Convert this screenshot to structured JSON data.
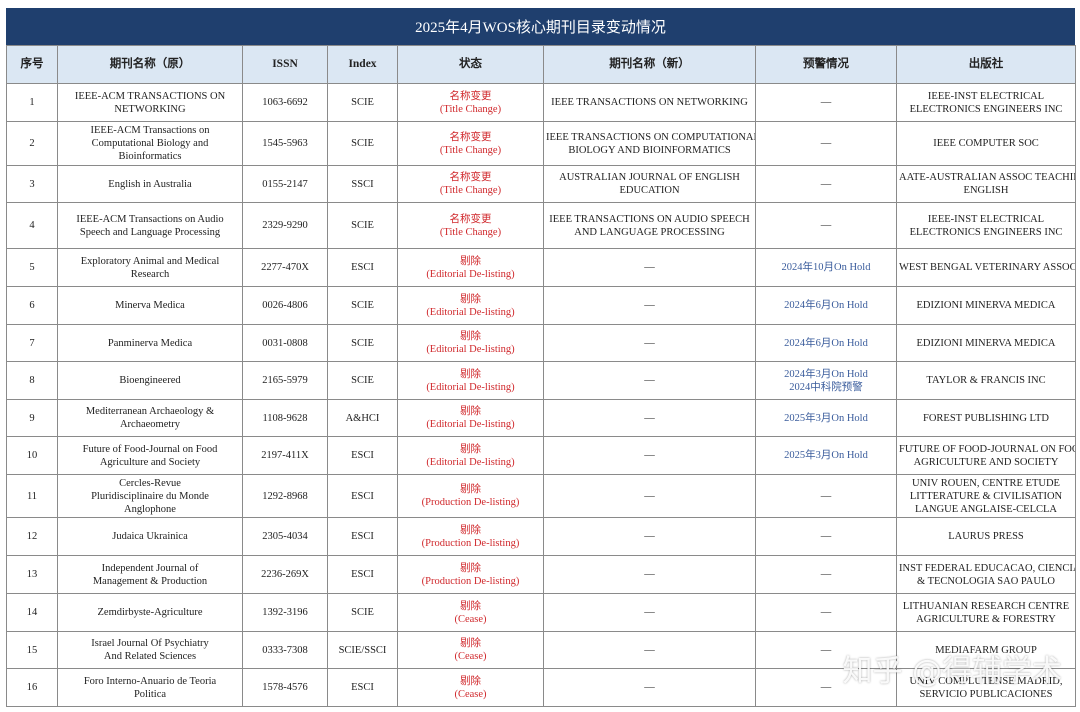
{
  "title": "2025年4月WOS核心期刊目录变动情况",
  "watermark": "知乎 @得辅学术",
  "table": {
    "header": [
      "序号",
      "期刊名称（原）",
      "ISSN",
      "Index",
      "状态",
      "期刊名称（新）",
      "预警情况",
      "出版社"
    ],
    "rows": [
      [
        "1",
        [
          "IEEE-ACM TRANSACTIONS ON",
          "NETWORKING"
        ],
        "1063-6692",
        "SCIE",
        [
          "名称变更",
          "(Title Change)"
        ],
        "IEEE TRANSACTIONS ON NETWORKING",
        "—",
        [
          "IEEE-INST ELECTRICAL",
          "ELECTRONICS ENGINEERS INC"
        ]
      ],
      [
        "2",
        [
          "IEEE-ACM Transactions on",
          "Computational Biology and",
          "Bioinformatics"
        ],
        "1545-5963",
        "SCIE",
        [
          "名称变更",
          "(Title Change)"
        ],
        [
          "IEEE TRANSACTIONS ON COMPUTATIONAL",
          "BIOLOGY AND BIOINFORMATICS"
        ],
        "—",
        "IEEE COMPUTER SOC"
      ],
      [
        "3",
        "English in Australia",
        "0155-2147",
        "SSCI",
        [
          "名称变更",
          "(Title Change)"
        ],
        [
          "AUSTRALIAN JOURNAL OF ENGLISH",
          "EDUCATION"
        ],
        "—",
        [
          "AATE-AUSTRALIAN ASSOC TEACHING",
          "ENGLISH"
        ]
      ],
      [
        "4",
        [
          "IEEE-ACM Transactions on Audio",
          "Speech and Language Processing"
        ],
        "2329-9290",
        "SCIE",
        [
          "名称变更",
          "(Title Change)"
        ],
        [
          "IEEE TRANSACTIONS ON AUDIO SPEECH",
          "AND LANGUAGE PROCESSING"
        ],
        "—",
        [
          "IEEE-INST ELECTRICAL",
          "ELECTRONICS ENGINEERS INC"
        ]
      ],
      [
        "5",
        [
          "Exploratory Animal and Medical",
          "Research"
        ],
        "2277-470X",
        "ESCI",
        [
          "剔除",
          "(Editorial De-listing)"
        ],
        "—",
        "2024年10月On Hold",
        "WEST BENGAL VETERINARY ASSOC"
      ],
      [
        "6",
        "Minerva Medica",
        "0026-4806",
        "SCIE",
        [
          "剔除",
          "(Editorial De-listing)"
        ],
        "—",
        "2024年6月On Hold",
        "EDIZIONI MINERVA MEDICA"
      ],
      [
        "7",
        "Panminerva Medica",
        "0031-0808",
        "SCIE",
        [
          "剔除",
          "(Editorial De-listing)"
        ],
        "—",
        "2024年6月On Hold",
        "EDIZIONI MINERVA MEDICA"
      ],
      [
        "8",
        "Bioengineered",
        "2165-5979",
        "SCIE",
        [
          "剔除",
          "(Editorial De-listing)"
        ],
        "—",
        [
          "2024年3月On Hold",
          "2024中科院预警"
        ],
        "TAYLOR & FRANCIS INC"
      ],
      [
        "9",
        [
          "Mediterranean Archaeology &",
          "Archaeometry"
        ],
        "1108-9628",
        "A&HCI",
        [
          "剔除",
          "(Editorial De-listing)"
        ],
        "—",
        "2025年3月On Hold",
        "FOREST PUBLISHING LTD"
      ],
      [
        "10",
        [
          "Future of Food-Journal on Food",
          "Agriculture and Society"
        ],
        "2197-411X",
        "ESCI",
        [
          "剔除",
          "(Editorial De-listing)"
        ],
        "—",
        "2025年3月On Hold",
        [
          "FUTURE OF FOOD-JOURNAL ON FOOD",
          "AGRICULTURE AND SOCIETY"
        ]
      ],
      [
        "11",
        [
          "Cercles-Revue",
          "Pluridisciplinaire du Monde",
          "Anglophone"
        ],
        "1292-8968",
        "ESCI",
        [
          "剔除",
          "(Production De-listing)"
        ],
        "—",
        "—",
        [
          "UNIV ROUEN, CENTRE ETUDE",
          "LITTERATURE & CIVILISATION",
          "LANGUE ANGLAISE-CELCLA"
        ]
      ],
      [
        "12",
        "Judaica Ukrainica",
        "2305-4034",
        "ESCI",
        [
          "剔除",
          "(Production De-listing)"
        ],
        "—",
        "—",
        "LAURUS PRESS"
      ],
      [
        "13",
        [
          "Independent Journal of",
          "Management & Production"
        ],
        "2236-269X",
        "ESCI",
        [
          "剔除",
          "(Production De-listing)"
        ],
        "—",
        "—",
        [
          "INST FEDERAL EDUCACAO, CIENCIA",
          "& TECNOLOGIA SAO PAULO"
        ]
      ],
      [
        "14",
        "Zemdirbyste-Agriculture",
        "1392-3196",
        "SCIE",
        [
          "剔除",
          "(Cease)"
        ],
        "—",
        "—",
        [
          "LITHUANIAN RESEARCH CENTRE",
          "AGRICULTURE & FORESTRY"
        ]
      ],
      [
        "15",
        [
          "Israel Journal Of Psychiatry",
          "And Related Sciences"
        ],
        "0333-7308",
        "SCIE/SSCI",
        [
          "剔除",
          "(Cease)"
        ],
        "—",
        "—",
        "MEDIAFARM GROUP"
      ],
      [
        "16",
        [
          "Foro Interno-Anuario de Teoria",
          "Politica"
        ],
        "1578-4576",
        "ESCI",
        [
          "剔除",
          "(Cease)"
        ],
        "—",
        "—",
        [
          "UNIV COMPLUTENSE MADRID,",
          "SERVICIO PUBLICACIONES"
        ]
      ]
    ]
  }
}
